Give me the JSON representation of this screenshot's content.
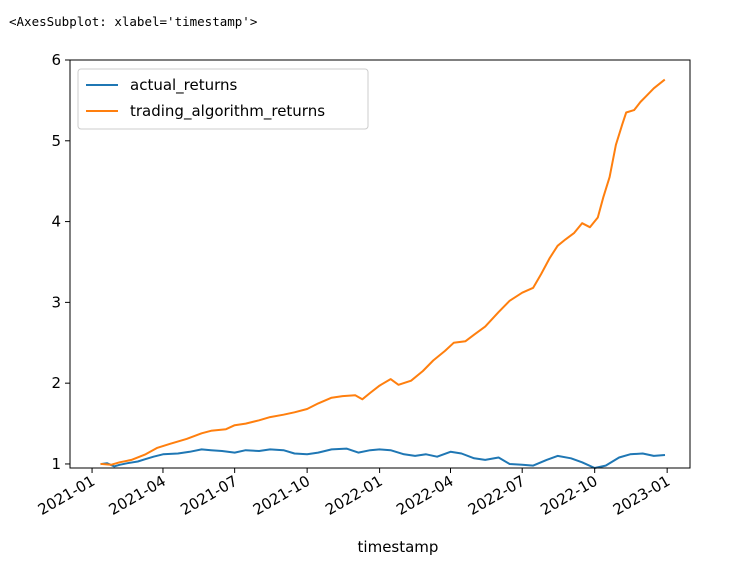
{
  "output": {
    "repr_text": "<AxesSubplot: xlabel='timestamp'>"
  },
  "chart_data": {
    "type": "line",
    "title": "",
    "xlabel": "timestamp",
    "ylabel": "",
    "x_type": "date",
    "xlim": [
      "2020-12-04",
      "2023-01-30"
    ],
    "ylim": [
      0.95,
      6.0
    ],
    "x_ticks": [
      "2021-01",
      "2021-04",
      "2021-07",
      "2021-10",
      "2022-01",
      "2022-04",
      "2022-07",
      "2022-10",
      "2023-01"
    ],
    "x_tick_dates": [
      "2021-01-01",
      "2021-04-01",
      "2021-07-01",
      "2021-10-01",
      "2022-01-01",
      "2022-04-01",
      "2022-07-01",
      "2022-10-01",
      "2023-01-01"
    ],
    "y_ticks": [
      1,
      2,
      3,
      4,
      5,
      6
    ],
    "grid": false,
    "legend_position": "upper-left",
    "series": [
      {
        "name": "actual_returns",
        "color": "#1f77b4",
        "points": [
          [
            "2021-01-13",
            1.0
          ],
          [
            "2021-01-20",
            1.01
          ],
          [
            "2021-01-29",
            0.97
          ],
          [
            "2021-02-05",
            0.99
          ],
          [
            "2021-02-15",
            1.01
          ],
          [
            "2021-02-28",
            1.03
          ],
          [
            "2021-03-10",
            1.06
          ],
          [
            "2021-03-20",
            1.09
          ],
          [
            "2021-04-01",
            1.12
          ],
          [
            "2021-04-20",
            1.13
          ],
          [
            "2021-05-05",
            1.15
          ],
          [
            "2021-05-20",
            1.18
          ],
          [
            "2021-06-01",
            1.17
          ],
          [
            "2021-06-15",
            1.16
          ],
          [
            "2021-07-01",
            1.14
          ],
          [
            "2021-07-15",
            1.17
          ],
          [
            "2021-08-01",
            1.16
          ],
          [
            "2021-08-15",
            1.18
          ],
          [
            "2021-09-01",
            1.17
          ],
          [
            "2021-09-15",
            1.13
          ],
          [
            "2021-10-01",
            1.12
          ],
          [
            "2021-10-15",
            1.14
          ],
          [
            "2021-11-01",
            1.18
          ],
          [
            "2021-11-20",
            1.19
          ],
          [
            "2021-12-05",
            1.14
          ],
          [
            "2021-12-20",
            1.17
          ],
          [
            "2022-01-01",
            1.18
          ],
          [
            "2022-01-15",
            1.17
          ],
          [
            "2022-02-01",
            1.12
          ],
          [
            "2022-02-15",
            1.1
          ],
          [
            "2022-03-01",
            1.12
          ],
          [
            "2022-03-15",
            1.09
          ],
          [
            "2022-04-01",
            1.15
          ],
          [
            "2022-04-15",
            1.13
          ],
          [
            "2022-05-01",
            1.07
          ],
          [
            "2022-05-15",
            1.05
          ],
          [
            "2022-06-01",
            1.08
          ],
          [
            "2022-06-15",
            1.0
          ],
          [
            "2022-07-01",
            0.99
          ],
          [
            "2022-07-15",
            0.98
          ],
          [
            "2022-08-01",
            1.05
          ],
          [
            "2022-08-15",
            1.1
          ],
          [
            "2022-09-01",
            1.07
          ],
          [
            "2022-09-15",
            1.02
          ],
          [
            "2022-10-01",
            0.95
          ],
          [
            "2022-10-15",
            0.98
          ],
          [
            "2022-11-01",
            1.08
          ],
          [
            "2022-11-15",
            1.12
          ],
          [
            "2022-12-01",
            1.13
          ],
          [
            "2022-12-15",
            1.1
          ],
          [
            "2022-12-28",
            1.11
          ]
        ]
      },
      {
        "name": "trading_algorithm_returns",
        "color": "#ff7f0e",
        "points": [
          [
            "2021-01-13",
            1.0
          ],
          [
            "2021-01-25",
            0.99
          ],
          [
            "2021-02-05",
            1.02
          ],
          [
            "2021-02-20",
            1.05
          ],
          [
            "2021-03-10",
            1.12
          ],
          [
            "2021-03-25",
            1.2
          ],
          [
            "2021-04-10",
            1.25
          ],
          [
            "2021-05-01",
            1.31
          ],
          [
            "2021-05-20",
            1.38
          ],
          [
            "2021-06-01",
            1.41
          ],
          [
            "2021-06-20",
            1.43
          ],
          [
            "2021-07-01",
            1.48
          ],
          [
            "2021-07-15",
            1.5
          ],
          [
            "2021-08-01",
            1.54
          ],
          [
            "2021-08-15",
            1.58
          ],
          [
            "2021-09-01",
            1.61
          ],
          [
            "2021-09-15",
            1.64
          ],
          [
            "2021-10-01",
            1.68
          ],
          [
            "2021-10-15",
            1.75
          ],
          [
            "2021-11-01",
            1.82
          ],
          [
            "2021-11-15",
            1.84
          ],
          [
            "2021-12-01",
            1.85
          ],
          [
            "2021-12-10",
            1.8
          ],
          [
            "2021-12-20",
            1.88
          ],
          [
            "2022-01-01",
            1.97
          ],
          [
            "2022-01-15",
            2.05
          ],
          [
            "2022-01-25",
            1.98
          ],
          [
            "2022-02-10",
            2.03
          ],
          [
            "2022-02-25",
            2.15
          ],
          [
            "2022-03-10",
            2.28
          ],
          [
            "2022-03-25",
            2.4
          ],
          [
            "2022-04-05",
            2.5
          ],
          [
            "2022-04-20",
            2.52
          ],
          [
            "2022-05-01",
            2.6
          ],
          [
            "2022-05-15",
            2.7
          ],
          [
            "2022-06-01",
            2.88
          ],
          [
            "2022-06-15",
            3.02
          ],
          [
            "2022-07-01",
            3.12
          ],
          [
            "2022-07-15",
            3.18
          ],
          [
            "2022-07-25",
            3.35
          ],
          [
            "2022-08-05",
            3.55
          ],
          [
            "2022-08-15",
            3.7
          ],
          [
            "2022-08-25",
            3.78
          ],
          [
            "2022-09-05",
            3.86
          ],
          [
            "2022-09-15",
            3.98
          ],
          [
            "2022-09-25",
            3.93
          ],
          [
            "2022-10-05",
            4.05
          ],
          [
            "2022-10-12",
            4.3
          ],
          [
            "2022-10-20",
            4.55
          ],
          [
            "2022-10-28",
            4.95
          ],
          [
            "2022-11-05",
            5.2
          ],
          [
            "2022-11-10",
            5.35
          ],
          [
            "2022-11-20",
            5.38
          ],
          [
            "2022-11-28",
            5.48
          ],
          [
            "2022-12-05",
            5.55
          ],
          [
            "2022-12-15",
            5.65
          ],
          [
            "2022-12-28",
            5.75
          ]
        ]
      }
    ]
  }
}
